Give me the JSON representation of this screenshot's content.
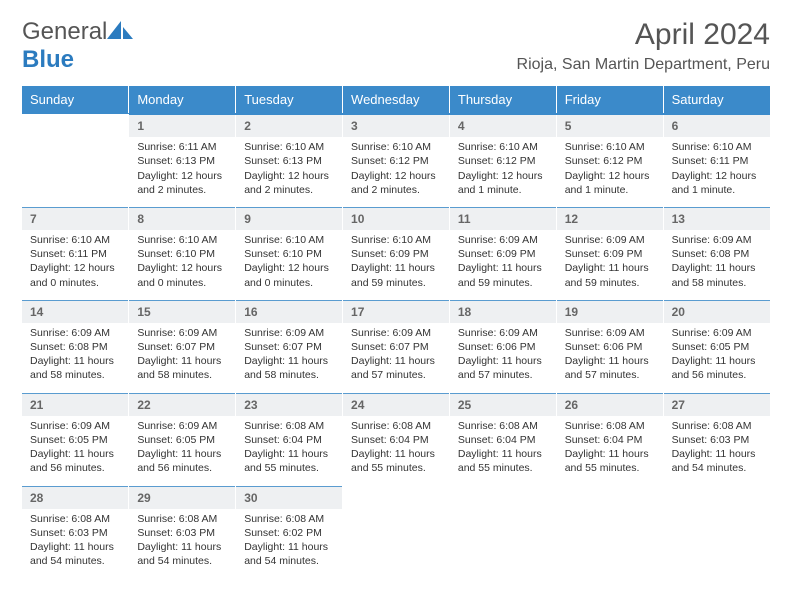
{
  "brand": {
    "part1": "General",
    "part2": "Blue"
  },
  "header": {
    "title": "April 2024",
    "location": "Rioja, San Martin Department, Peru"
  },
  "colors": {
    "header_bg": "#3b8aca",
    "header_text": "#ffffff",
    "daynum_bg": "#eef0f2",
    "border_top": "#3b8aca",
    "text": "#333333",
    "logo_icon": "#2b7bbf"
  },
  "dayHeaders": [
    "Sunday",
    "Monday",
    "Tuesday",
    "Wednesday",
    "Thursday",
    "Friday",
    "Saturday"
  ],
  "weeks": [
    [
      null,
      {
        "n": "1",
        "sr": "Sunrise: 6:11 AM",
        "ss": "Sunset: 6:13 PM",
        "dl1": "Daylight: 12 hours",
        "dl2": "and 2 minutes."
      },
      {
        "n": "2",
        "sr": "Sunrise: 6:10 AM",
        "ss": "Sunset: 6:13 PM",
        "dl1": "Daylight: 12 hours",
        "dl2": "and 2 minutes."
      },
      {
        "n": "3",
        "sr": "Sunrise: 6:10 AM",
        "ss": "Sunset: 6:12 PM",
        "dl1": "Daylight: 12 hours",
        "dl2": "and 2 minutes."
      },
      {
        "n": "4",
        "sr": "Sunrise: 6:10 AM",
        "ss": "Sunset: 6:12 PM",
        "dl1": "Daylight: 12 hours",
        "dl2": "and 1 minute."
      },
      {
        "n": "5",
        "sr": "Sunrise: 6:10 AM",
        "ss": "Sunset: 6:12 PM",
        "dl1": "Daylight: 12 hours",
        "dl2": "and 1 minute."
      },
      {
        "n": "6",
        "sr": "Sunrise: 6:10 AM",
        "ss": "Sunset: 6:11 PM",
        "dl1": "Daylight: 12 hours",
        "dl2": "and 1 minute."
      }
    ],
    [
      {
        "n": "7",
        "sr": "Sunrise: 6:10 AM",
        "ss": "Sunset: 6:11 PM",
        "dl1": "Daylight: 12 hours",
        "dl2": "and 0 minutes."
      },
      {
        "n": "8",
        "sr": "Sunrise: 6:10 AM",
        "ss": "Sunset: 6:10 PM",
        "dl1": "Daylight: 12 hours",
        "dl2": "and 0 minutes."
      },
      {
        "n": "9",
        "sr": "Sunrise: 6:10 AM",
        "ss": "Sunset: 6:10 PM",
        "dl1": "Daylight: 12 hours",
        "dl2": "and 0 minutes."
      },
      {
        "n": "10",
        "sr": "Sunrise: 6:10 AM",
        "ss": "Sunset: 6:09 PM",
        "dl1": "Daylight: 11 hours",
        "dl2": "and 59 minutes."
      },
      {
        "n": "11",
        "sr": "Sunrise: 6:09 AM",
        "ss": "Sunset: 6:09 PM",
        "dl1": "Daylight: 11 hours",
        "dl2": "and 59 minutes."
      },
      {
        "n": "12",
        "sr": "Sunrise: 6:09 AM",
        "ss": "Sunset: 6:09 PM",
        "dl1": "Daylight: 11 hours",
        "dl2": "and 59 minutes."
      },
      {
        "n": "13",
        "sr": "Sunrise: 6:09 AM",
        "ss": "Sunset: 6:08 PM",
        "dl1": "Daylight: 11 hours",
        "dl2": "and 58 minutes."
      }
    ],
    [
      {
        "n": "14",
        "sr": "Sunrise: 6:09 AM",
        "ss": "Sunset: 6:08 PM",
        "dl1": "Daylight: 11 hours",
        "dl2": "and 58 minutes."
      },
      {
        "n": "15",
        "sr": "Sunrise: 6:09 AM",
        "ss": "Sunset: 6:07 PM",
        "dl1": "Daylight: 11 hours",
        "dl2": "and 58 minutes."
      },
      {
        "n": "16",
        "sr": "Sunrise: 6:09 AM",
        "ss": "Sunset: 6:07 PM",
        "dl1": "Daylight: 11 hours",
        "dl2": "and 58 minutes."
      },
      {
        "n": "17",
        "sr": "Sunrise: 6:09 AM",
        "ss": "Sunset: 6:07 PM",
        "dl1": "Daylight: 11 hours",
        "dl2": "and 57 minutes."
      },
      {
        "n": "18",
        "sr": "Sunrise: 6:09 AM",
        "ss": "Sunset: 6:06 PM",
        "dl1": "Daylight: 11 hours",
        "dl2": "and 57 minutes."
      },
      {
        "n": "19",
        "sr": "Sunrise: 6:09 AM",
        "ss": "Sunset: 6:06 PM",
        "dl1": "Daylight: 11 hours",
        "dl2": "and 57 minutes."
      },
      {
        "n": "20",
        "sr": "Sunrise: 6:09 AM",
        "ss": "Sunset: 6:05 PM",
        "dl1": "Daylight: 11 hours",
        "dl2": "and 56 minutes."
      }
    ],
    [
      {
        "n": "21",
        "sr": "Sunrise: 6:09 AM",
        "ss": "Sunset: 6:05 PM",
        "dl1": "Daylight: 11 hours",
        "dl2": "and 56 minutes."
      },
      {
        "n": "22",
        "sr": "Sunrise: 6:09 AM",
        "ss": "Sunset: 6:05 PM",
        "dl1": "Daylight: 11 hours",
        "dl2": "and 56 minutes."
      },
      {
        "n": "23",
        "sr": "Sunrise: 6:08 AM",
        "ss": "Sunset: 6:04 PM",
        "dl1": "Daylight: 11 hours",
        "dl2": "and 55 minutes."
      },
      {
        "n": "24",
        "sr": "Sunrise: 6:08 AM",
        "ss": "Sunset: 6:04 PM",
        "dl1": "Daylight: 11 hours",
        "dl2": "and 55 minutes."
      },
      {
        "n": "25",
        "sr": "Sunrise: 6:08 AM",
        "ss": "Sunset: 6:04 PM",
        "dl1": "Daylight: 11 hours",
        "dl2": "and 55 minutes."
      },
      {
        "n": "26",
        "sr": "Sunrise: 6:08 AM",
        "ss": "Sunset: 6:04 PM",
        "dl1": "Daylight: 11 hours",
        "dl2": "and 55 minutes."
      },
      {
        "n": "27",
        "sr": "Sunrise: 6:08 AM",
        "ss": "Sunset: 6:03 PM",
        "dl1": "Daylight: 11 hours",
        "dl2": "and 54 minutes."
      }
    ],
    [
      {
        "n": "28",
        "sr": "Sunrise: 6:08 AM",
        "ss": "Sunset: 6:03 PM",
        "dl1": "Daylight: 11 hours",
        "dl2": "and 54 minutes."
      },
      {
        "n": "29",
        "sr": "Sunrise: 6:08 AM",
        "ss": "Sunset: 6:03 PM",
        "dl1": "Daylight: 11 hours",
        "dl2": "and 54 minutes."
      },
      {
        "n": "30",
        "sr": "Sunrise: 6:08 AM",
        "ss": "Sunset: 6:02 PM",
        "dl1": "Daylight: 11 hours",
        "dl2": "and 54 minutes."
      },
      null,
      null,
      null,
      null
    ]
  ]
}
